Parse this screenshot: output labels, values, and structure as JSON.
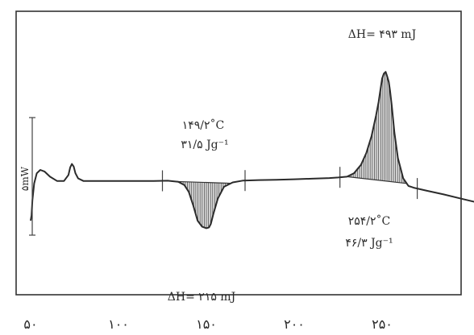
{
  "chart_data": {
    "type": "line",
    "title": "",
    "xlabel": "",
    "ylabel": "",
    "x_ticks": [
      {
        "value": 50,
        "label": "۵۰"
      },
      {
        "value": 100,
        "label": "۱۰۰"
      },
      {
        "value": 150,
        "label": "۱۵۰"
      },
      {
        "value": 200,
        "label": "۲۰۰"
      },
      {
        "value": 250,
        "label": "۲۵۰"
      }
    ],
    "xlim": [
      50,
      310
    ],
    "scale_bar_label": "۵mW",
    "series": [
      {
        "x": [
          50.0,
          50.5,
          51.0,
          52.0,
          53.5,
          55.5,
          58.0,
          61.0,
          65.0,
          69.0,
          71.5,
          72.5,
          73.5,
          74.5,
          75.5,
          77.0,
          80.0,
          90.0,
          100.0,
          110.0,
          120.0,
          128.0,
          134.0,
          137.5,
          140.0,
          142.5,
          145.0,
          147.5,
          150.0,
          151.5,
          152.5,
          154.0,
          156.5,
          160.0,
          165.0,
          171.0,
          180.0,
          190.0,
          200.0,
          210.0,
          220.0,
          225.0,
          230.0,
          234.0,
          238.0,
          241.0,
          244.0,
          246.5,
          248.0,
          250.0,
          251.0,
          252.0,
          253.0,
          253.8,
          254.5,
          255.5,
          257.0,
          259.0,
          262.0,
          265.0,
          268.0,
          270.0,
          275.0,
          285.0,
          295.0,
          305.0,
          310.0
        ],
        "y": [
          0.0,
          3.0,
          12.0,
          22.0,
          28.0,
          30.0,
          29.0,
          26.0,
          23.5,
          23.5,
          27.0,
          31.5,
          33.5,
          32.0,
          28.0,
          25.0,
          23.5,
          23.5,
          23.5,
          23.5,
          23.5,
          23.6,
          23.0,
          21.0,
          17.0,
          9.0,
          0.0,
          -3.5,
          -4.5,
          -4.0,
          -2.0,
          4.0,
          13.0,
          20.0,
          22.6,
          23.7,
          24.0,
          24.2,
          24.5,
          24.8,
          25.2,
          25.5,
          26.0,
          28.0,
          33.0,
          40.0,
          50.0,
          62.0,
          70.0,
          84.0,
          87.0,
          88.0,
          85.0,
          82.0,
          77.0,
          68.0,
          52.0,
          37.0,
          25.0,
          20.5,
          19.5,
          19.0,
          17.8,
          15.5,
          13.0,
          10.5,
          9.0
        ]
      }
    ],
    "peaks": [
      {
        "type": "endotherm",
        "peak_label": "۱۴۹/۲˚C",
        "enthalpy_label": "۳۱/۵ Jg⁻¹",
        "delta_h_label": "ΔH= ۲۱۵ mJ",
        "range": [
          125,
          172
        ]
      },
      {
        "type": "exotherm",
        "peak_label": "۲۵۴/۲˚C",
        "enthalpy_label": "۴۶/۳ Jg⁻¹",
        "delta_h_label": "ΔH= ۴۹۳ mJ",
        "range": [
          226,
          270
        ]
      }
    ],
    "grid": false,
    "legend": "none"
  }
}
